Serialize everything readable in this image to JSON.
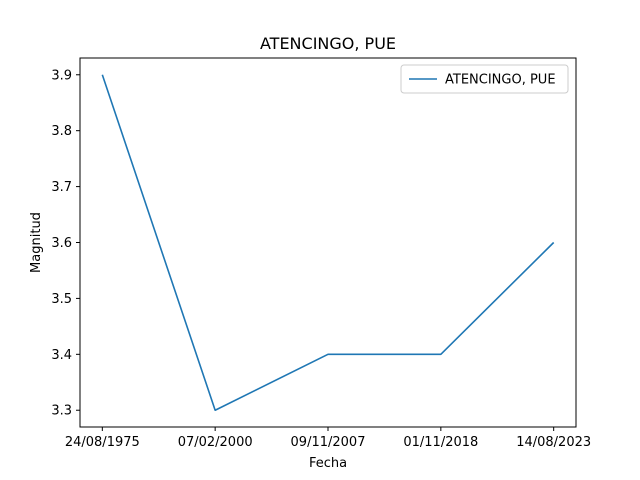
{
  "chart_data": {
    "type": "line",
    "title": "ATENCINGO, PUE",
    "xlabel": "Fecha",
    "ylabel": "Magnitud",
    "categories": [
      "24/08/1975",
      "07/02/2000",
      "09/11/2007",
      "01/11/2018",
      "14/08/2023"
    ],
    "series": [
      {
        "name": "ATENCINGO, PUE",
        "values": [
          3.9,
          3.3,
          3.4,
          3.4,
          3.6
        ],
        "color": "#1f77b4"
      }
    ],
    "yticks": [
      "3.3",
      "3.4",
      "3.5",
      "3.6",
      "3.7",
      "3.8",
      "3.9"
    ],
    "ylim": [
      3.27,
      3.93
    ],
    "grid": false,
    "legend_position": "top-right"
  }
}
